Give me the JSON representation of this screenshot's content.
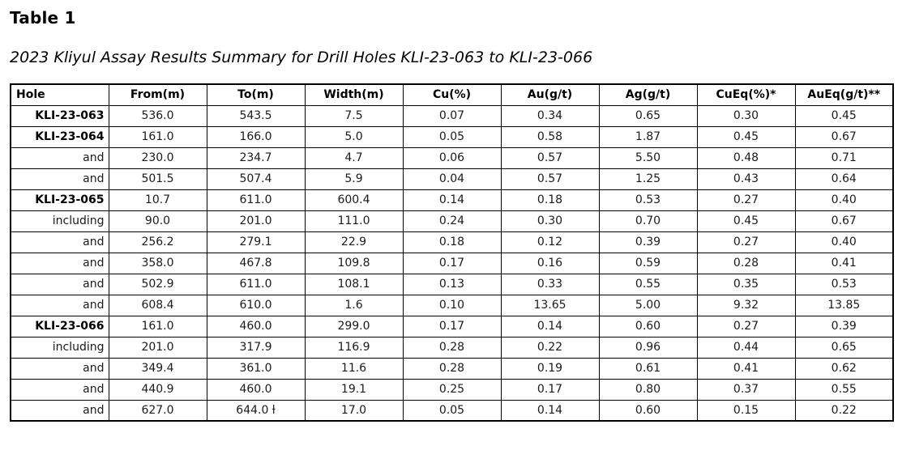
{
  "page": {
    "title": "Table 1",
    "subtitle": "2023 Kliyul Assay Results Summary for Drill Holes KLI-23-063 to KLI-23-066"
  },
  "colors": {
    "background": "#ffffff",
    "text": "#000000",
    "border": "#000000"
  },
  "table": {
    "columns": [
      "Hole",
      "From(m)",
      "To(m)",
      "Width(m)",
      "Cu(%)",
      "Au(g/t)",
      "Ag(g/t)",
      "CuEq(%)*",
      "AuEq(g/t)**"
    ],
    "rows": [
      {
        "hole": "KLI-23-063",
        "bold": true,
        "values": [
          "536.0",
          "543.5",
          "7.5",
          "0.07",
          "0.34",
          "0.65",
          "0.30",
          "0.45"
        ]
      },
      {
        "hole": "KLI-23-064",
        "bold": true,
        "values": [
          "161.0",
          "166.0",
          "5.0",
          "0.05",
          "0.58",
          "1.87",
          "0.45",
          "0.67"
        ]
      },
      {
        "hole": "and",
        "bold": false,
        "values": [
          "230.0",
          "234.7",
          "4.7",
          "0.06",
          "0.57",
          "5.50",
          "0.48",
          "0.71"
        ]
      },
      {
        "hole": "and",
        "bold": false,
        "values": [
          "501.5",
          "507.4",
          "5.9",
          "0.04",
          "0.57",
          "1.25",
          "0.43",
          "0.64"
        ]
      },
      {
        "hole": "KLI-23-065",
        "bold": true,
        "values": [
          "10.7",
          "611.0",
          "600.4",
          "0.14",
          "0.18",
          "0.53",
          "0.27",
          "0.40"
        ]
      },
      {
        "hole": "including",
        "bold": false,
        "values": [
          "90.0",
          "201.0",
          "111.0",
          "0.24",
          "0.30",
          "0.70",
          "0.45",
          "0.67"
        ]
      },
      {
        "hole": "and",
        "bold": false,
        "values": [
          "256.2",
          "279.1",
          "22.9",
          "0.18",
          "0.12",
          "0.39",
          "0.27",
          "0.40"
        ]
      },
      {
        "hole": "and",
        "bold": false,
        "values": [
          "358.0",
          "467.8",
          "109.8",
          "0.17",
          "0.16",
          "0.59",
          "0.28",
          "0.41"
        ]
      },
      {
        "hole": "and",
        "bold": false,
        "values": [
          "502.9",
          "611.0",
          "108.1",
          "0.13",
          "0.33",
          "0.55",
          "0.35",
          "0.53"
        ]
      },
      {
        "hole": "and",
        "bold": false,
        "values": [
          "608.4",
          "610.0",
          "1.6",
          "0.10",
          "13.65",
          "5.00",
          "9.32",
          "13.85"
        ]
      },
      {
        "hole": "KLI-23-066",
        "bold": true,
        "values": [
          "161.0",
          "460.0",
          "299.0",
          "0.17",
          "0.14",
          "0.60",
          "0.27",
          "0.39"
        ]
      },
      {
        "hole": "including",
        "bold": false,
        "values": [
          "201.0",
          "317.9",
          "116.9",
          "0.28",
          "0.22",
          "0.96",
          "0.44",
          "0.65"
        ]
      },
      {
        "hole": "and",
        "bold": false,
        "values": [
          "349.4",
          "361.0",
          "11.6",
          "0.28",
          "0.19",
          "0.61",
          "0.41",
          "0.62"
        ]
      },
      {
        "hole": "and",
        "bold": false,
        "values": [
          "440.9",
          "460.0",
          "19.1",
          "0.25",
          "0.17",
          "0.80",
          "0.37",
          "0.55"
        ]
      },
      {
        "hole": "and",
        "bold": false,
        "values": [
          "627.0",
          "644.0 ƚ",
          "17.0",
          "0.05",
          "0.14",
          "0.60",
          "0.15",
          "0.22"
        ]
      }
    ]
  }
}
